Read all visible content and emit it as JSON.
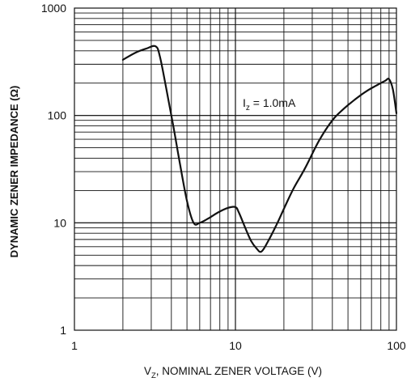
{
  "chart_data": {
    "type": "line",
    "x_scale": "log",
    "y_scale": "log",
    "xlabel_main": "V",
    "xlabel_sub": "Z",
    "xlabel_rest": ", NOMINAL ZENER VOLTAGE (V)",
    "ylabel": "DYNAMIC ZENER IMPEDANCE (Ω)",
    "xlim": [
      1,
      100
    ],
    "ylim": [
      1,
      1000
    ],
    "x_ticks": [
      1,
      10,
      100
    ],
    "x_tick_labels": [
      "1",
      "10",
      "100"
    ],
    "y_ticks": [
      1,
      10,
      100,
      1000
    ],
    "y_tick_labels": [
      "1",
      "10",
      "100",
      "1000"
    ],
    "grid": true,
    "annotation": {
      "main": "I",
      "sub": "z",
      "rest": " = 1.0mA"
    },
    "series": [
      {
        "x": [
          2.0,
          2.4,
          2.8,
          3.2,
          3.4,
          3.7,
          4.1,
          4.5,
          5.0,
          5.5,
          6.0,
          6.8,
          7.8,
          9.0,
          10.0,
          10.5,
          11.5,
          12.5,
          13.5,
          14.5,
          16.0,
          18.0,
          20.0,
          23.0,
          27.0,
          33.0,
          40.0,
          47.0,
          55.0,
          65.0,
          75.0,
          85.0,
          90.0,
          95.0,
          100.0
        ],
        "y": [
          330,
          385,
          420,
          440,
          350,
          185,
          82,
          37,
          16,
          10,
          10,
          11,
          12.5,
          13.8,
          14.0,
          12.5,
          9.0,
          6.8,
          5.8,
          5.4,
          6.8,
          9.6,
          13.5,
          21.0,
          32.0,
          58.0,
          90.0,
          115.0,
          140.0,
          168.0,
          190.0,
          210.0,
          218.0,
          175.0,
          105.0
        ]
      }
    ]
  }
}
